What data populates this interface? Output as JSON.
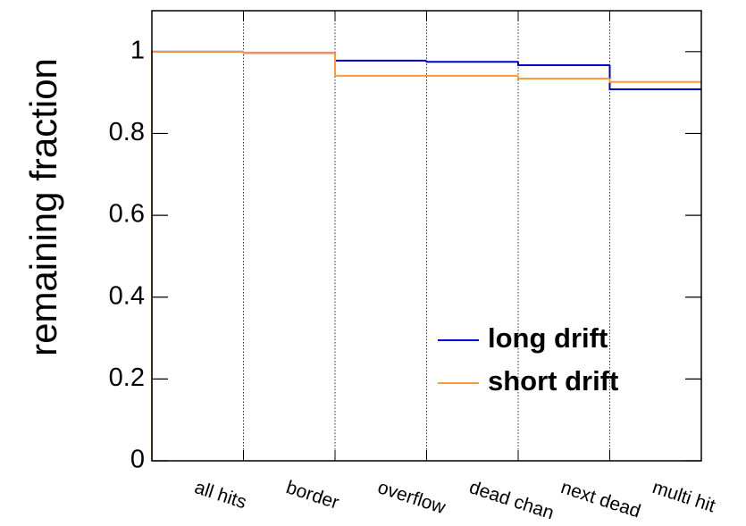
{
  "chart_data": {
    "type": "step",
    "y_label": "remaining fraction",
    "categories": [
      "all hits",
      "border",
      "overflow",
      "dead chan",
      "next dead",
      "multi hit"
    ],
    "series": [
      {
        "name": "long drift",
        "color": "#0000cc",
        "values": [
          1.0,
          0.997,
          0.978,
          0.975,
          0.967,
          0.908
        ]
      },
      {
        "name": "short drift",
        "color": "#ff9933",
        "values": [
          1.0,
          0.997,
          0.941,
          0.941,
          0.934,
          0.926
        ]
      }
    ],
    "ylim": [
      0,
      1.1
    ],
    "yticks": [
      0,
      0.2,
      0.4,
      0.6,
      0.8,
      1
    ],
    "grid": true
  }
}
